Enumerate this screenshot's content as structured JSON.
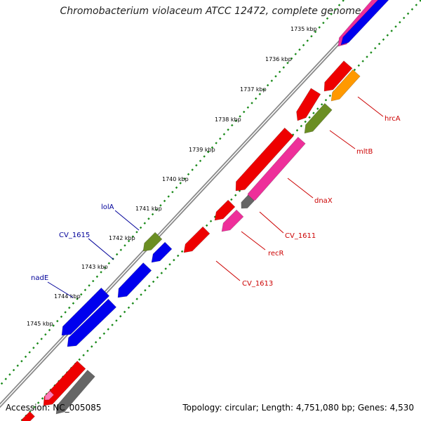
{
  "title": "Chromobacterium violaceum ATCC 12472, complete genome",
  "footer": {
    "accession": "Accession: NC_005085",
    "topology": "Topology: circular; Length: 4,751,080 bp; Genes: 4,530"
  },
  "colors": {
    "backbone": "#888888",
    "tick_dots": "#1a8a1a",
    "red": "#ee0000",
    "blue": "#0000ee",
    "magenta": "#ee2f9a",
    "olive": "#6b8e23",
    "orange": "#ff9900",
    "gray": "#666666",
    "pink": "#ff7ab8",
    "label_red": "#cc0000",
    "label_blue": "#000099"
  },
  "ticks": [
    "1735 kbp",
    "1736 kbp",
    "1737 kbp",
    "1738 kbp",
    "1739 kbp",
    "1740 kbp",
    "1741 kbp",
    "1742 kbp",
    "1743 kbp",
    "1744 kbp",
    "1745 kbp"
  ],
  "gene_labels": {
    "hrcA": "hrcA",
    "mltB": "mltB",
    "dnaX": "dnaX",
    "CV_1611": "CV_1611",
    "recR": "recR",
    "CV_1613": "CV_1613",
    "lolA": "lolA",
    "CV_1615": "CV_1615",
    "nadE": "nadE"
  }
}
